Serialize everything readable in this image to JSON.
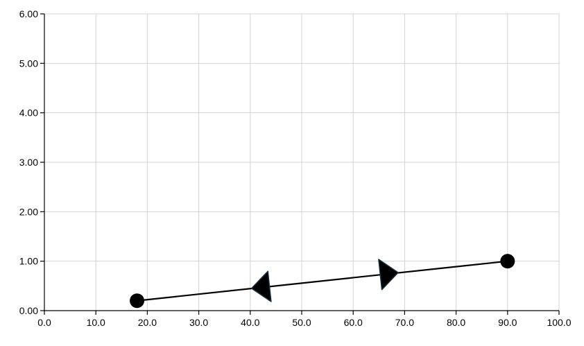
{
  "chart_data": {
    "type": "line",
    "xlim": [
      0,
      100
    ],
    "ylim": [
      0,
      6
    ],
    "x_ticks": [
      0,
      10,
      20,
      30,
      40,
      50,
      60,
      70,
      80,
      90,
      100
    ],
    "x_tick_labels": [
      "0.0",
      "10.0",
      "20.0",
      "30.0",
      "40.0",
      "50.0",
      "60.0",
      "70.0",
      "80.0",
      "90.0",
      "100.0"
    ],
    "y_ticks": [
      0,
      1,
      2,
      3,
      4,
      5,
      6
    ],
    "y_tick_labels": [
      "0.00",
      "1.00",
      "2.00",
      "3.00",
      "4.00",
      "5.00",
      "6.00"
    ],
    "grid": true,
    "segment": {
      "start": [
        18,
        0.2
      ],
      "end": [
        90,
        1.0
      ],
      "arrows": [
        {
          "at": [
            42,
            0.47
          ],
          "direction": "left"
        },
        {
          "at": [
            67,
            0.75
          ],
          "direction": "right"
        }
      ]
    },
    "colors": {
      "line": "#000000",
      "point": "#000000",
      "arrow_fill": "#000000",
      "arrow_stroke": "#17313f",
      "grid": "#d3d3d3",
      "axis": "#000000"
    }
  }
}
